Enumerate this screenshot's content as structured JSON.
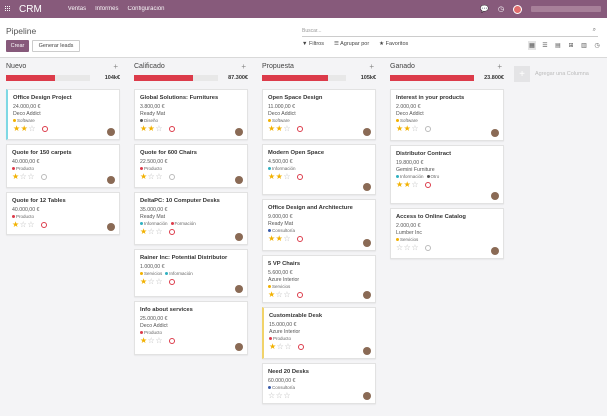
{
  "topbar": {
    "app_name": "CRM",
    "menus": [
      "Ventas",
      "Informes",
      "Configuración"
    ]
  },
  "control": {
    "title": "Pipeline",
    "create_label": "Crear",
    "import_label": "Generar leads",
    "search_placeholder": "Buscar...",
    "filters_label": "Filtros",
    "groupby_label": "Agrupar por",
    "favorites_label": "Favoritos"
  },
  "columns": [
    {
      "name": "Nuevo",
      "total": "104k€",
      "progress": 0.58,
      "cards": [
        {
          "title": "Office Design Project",
          "amount": "24.000,00 €",
          "company": "Deco Addict",
          "tags": [
            {
              "label": "Software",
              "color": "#f2b100"
            }
          ],
          "stars": 2,
          "clock": "red",
          "marked": "cyan"
        },
        {
          "title": "Quote for 150 carpets",
          "amount": "40.000,00 €",
          "company": "",
          "tags": [
            {
              "label": "Producto",
              "color": "#dc3b4a"
            }
          ],
          "stars": 1,
          "clock": "grey",
          "marked": ""
        },
        {
          "title": "Quote for 12 Tables",
          "amount": "40.000,00 €",
          "company": "",
          "tags": [
            {
              "label": "Producto",
              "color": "#dc3b4a"
            }
          ],
          "stars": 1,
          "clock": "red",
          "marked": ""
        }
      ]
    },
    {
      "name": "Calificado",
      "total": "87.300€",
      "progress": 0.7,
      "cards": [
        {
          "title": "Global Solutions: Furnitures",
          "amount": "3.800,00 €",
          "company": "Ready Mat",
          "tags": [
            {
              "label": "Diseño",
              "color": "#555"
            }
          ],
          "stars": 2,
          "clock": "red",
          "marked": ""
        },
        {
          "title": "Quote for 600 Chairs",
          "amount": "22.500,00 €",
          "company": "",
          "tags": [
            {
              "label": "Producto",
              "color": "#dc3b4a"
            }
          ],
          "stars": 1,
          "clock": "grey",
          "marked": ""
        },
        {
          "title": "DeltaPC: 10 Computer Desks",
          "amount": "35.000,00 €",
          "company": "Ready Mat",
          "tags": [
            {
              "label": "Información",
              "color": "#30b0c0"
            },
            {
              "label": "Formación",
              "color": "#dc3b4a"
            }
          ],
          "stars": 1,
          "clock": "red",
          "marked": ""
        },
        {
          "title": "Rainer Inc: Potential Distributor",
          "amount": "1.000,00 €",
          "company": "",
          "tags": [
            {
              "label": "Servicios",
              "color": "#f2b100"
            },
            {
              "label": "Información",
              "color": "#30b0c0"
            }
          ],
          "stars": 1,
          "clock": "red",
          "marked": ""
        },
        {
          "title": "Info about services",
          "amount": "25.000,00 €",
          "company": "Deco Addict",
          "tags": [
            {
              "label": "Producto",
              "color": "#dc3b4a"
            }
          ],
          "stars": 1,
          "clock": "red",
          "marked": ""
        }
      ]
    },
    {
      "name": "Propuesta",
      "total": "105k€",
      "progress": 0.78,
      "cards": [
        {
          "title": "Open Space Design",
          "amount": "11.000,00 €",
          "company": "Deco Addict",
          "tags": [
            {
              "label": "Software",
              "color": "#f2b100"
            }
          ],
          "stars": 2,
          "clock": "red",
          "marked": ""
        },
        {
          "title": "Modern Open Space",
          "amount": "4.500,00 €",
          "company": "",
          "tags": [
            {
              "label": "Información",
              "color": "#30b0c0"
            }
          ],
          "stars": 2,
          "clock": "red",
          "marked": ""
        },
        {
          "title": "Office Design and Architecture",
          "amount": "9.000,00 €",
          "company": "Ready Mat",
          "tags": [
            {
              "label": "Consultoría",
              "color": "#3a5cab"
            }
          ],
          "stars": 2,
          "clock": "red",
          "marked": ""
        },
        {
          "title": "5 VP Chairs",
          "amount": "5.600,00 €",
          "company": "Azure Interior",
          "tags": [
            {
              "label": "Servicios",
              "color": "#f2b100"
            }
          ],
          "stars": 1,
          "clock": "red",
          "marked": ""
        },
        {
          "title": "Customizable Desk",
          "amount": "15.000,00 €",
          "company": "Azure Interior",
          "tags": [
            {
              "label": "Producto",
              "color": "#dc3b4a"
            }
          ],
          "stars": 1,
          "clock": "red",
          "marked": "yellow"
        },
        {
          "title": "Need 20 Desks",
          "amount": "60.000,00 €",
          "company": "",
          "tags": [
            {
              "label": "Consultoría",
              "color": "#3a5cab"
            }
          ],
          "stars": 0,
          "clock": "none",
          "marked": ""
        }
      ]
    },
    {
      "name": "Ganado",
      "total": "23.800€",
      "progress": 1.0,
      "cards": [
        {
          "title": "Interest in your products",
          "amount": "2.000,00 €",
          "company": "Deco Addict",
          "tags": [
            {
              "label": "Software",
              "color": "#f2b100"
            }
          ],
          "stars": 2,
          "clock": "grey",
          "marked": ""
        },
        {
          "title": "Distributor Contract",
          "amount": "19.800,00 €",
          "company": "Gemini Furniture",
          "tags": [
            {
              "label": "Información",
              "color": "#30b0c0"
            },
            {
              "label": "Otro",
              "color": "#555"
            }
          ],
          "stars": 2,
          "clock": "red",
          "marked": ""
        },
        {
          "title": "Access to Online Catalog",
          "amount": "2.000,00 €",
          "company": "Lumber Inc",
          "tags": [
            {
              "label": "Servicios",
              "color": "#f2b100"
            }
          ],
          "stars": 0,
          "clock": "grey",
          "marked": ""
        }
      ]
    }
  ],
  "add_column_label": "Agregar una Columna"
}
